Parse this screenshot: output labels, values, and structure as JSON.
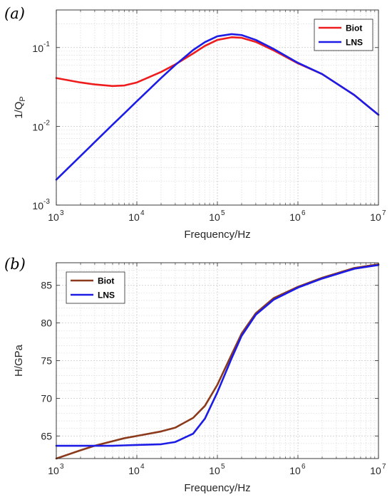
{
  "panels": [
    {
      "label": "(a)"
    },
    {
      "label": "(b)"
    }
  ],
  "chart_data": [
    {
      "type": "line",
      "panel_label": "(a)",
      "xlabel": "Frequency/Hz",
      "ylabel": "1/Q",
      "ylabel_subscript": "P",
      "xscale": "log",
      "yscale": "log",
      "xlim": [
        1000,
        10000000
      ],
      "ylim": [
        0.001,
        0.3
      ],
      "xticks": [
        {
          "base": "10",
          "exp": "3",
          "value": 1000
        },
        {
          "base": "10",
          "exp": "4",
          "value": 10000
        },
        {
          "base": "10",
          "exp": "5",
          "value": 100000
        },
        {
          "base": "10",
          "exp": "6",
          "value": 1000000
        },
        {
          "base": "10",
          "exp": "7",
          "value": 10000000
        }
      ],
      "yticks": [
        {
          "base": "10",
          "exp": "-3",
          "value": 0.001
        },
        {
          "base": "10",
          "exp": "-2",
          "value": 0.01
        },
        {
          "base": "10",
          "exp": "-1",
          "value": 0.1
        }
      ],
      "grid": true,
      "legend_position": "top-right",
      "series": [
        {
          "name": "Biot",
          "color": "#ee1c1c",
          "x": [
            1000,
            2000,
            3000,
            5000,
            7000,
            10000,
            20000,
            30000,
            50000,
            70000,
            100000,
            150000,
            200000,
            300000,
            500000,
            1000000,
            2000000,
            5000000,
            10000000
          ],
          "y": [
            0.041,
            0.036,
            0.034,
            0.0325,
            0.033,
            0.036,
            0.049,
            0.061,
            0.084,
            0.105,
            0.125,
            0.135,
            0.133,
            0.118,
            0.092,
            0.063,
            0.046,
            0.025,
            0.014
          ]
        },
        {
          "name": "LNS",
          "color": "#1c1ce6",
          "x": [
            1000,
            2000,
            3000,
            5000,
            7000,
            10000,
            20000,
            30000,
            50000,
            70000,
            100000,
            150000,
            200000,
            300000,
            500000,
            1000000,
            2000000,
            5000000,
            10000000
          ],
          "y": [
            0.0021,
            0.0042,
            0.0063,
            0.0105,
            0.0146,
            0.0208,
            0.041,
            0.06,
            0.093,
            0.117,
            0.139,
            0.148,
            0.144,
            0.125,
            0.096,
            0.064,
            0.046,
            0.025,
            0.014
          ]
        }
      ]
    },
    {
      "type": "line",
      "panel_label": "(b)",
      "xlabel": "Frequency/Hz",
      "ylabel": "H/GPa",
      "xscale": "log",
      "yscale": "linear",
      "xlim": [
        1000,
        10000000
      ],
      "ylim": [
        62,
        88
      ],
      "xticks": [
        {
          "base": "10",
          "exp": "3",
          "value": 1000
        },
        {
          "base": "10",
          "exp": "4",
          "value": 10000
        },
        {
          "base": "10",
          "exp": "5",
          "value": 100000
        },
        {
          "base": "10",
          "exp": "6",
          "value": 1000000
        },
        {
          "base": "10",
          "exp": "7",
          "value": 10000000
        }
      ],
      "yticks": [
        {
          "label": "65",
          "value": 65
        },
        {
          "label": "70",
          "value": 70
        },
        {
          "label": "75",
          "value": 75
        },
        {
          "label": "80",
          "value": 80
        },
        {
          "label": "85",
          "value": 85
        }
      ],
      "grid": true,
      "legend_position": "top-left",
      "series": [
        {
          "name": "Biot",
          "color": "#8b3a1c",
          "x": [
            1000,
            2000,
            3000,
            5000,
            7000,
            10000,
            20000,
            30000,
            50000,
            70000,
            100000,
            150000,
            200000,
            300000,
            500000,
            1000000,
            2000000,
            5000000,
            10000000
          ],
          "y": [
            62.0,
            63.1,
            63.7,
            64.3,
            64.7,
            65.0,
            65.6,
            66.1,
            67.4,
            69.0,
            71.8,
            75.8,
            78.6,
            81.3,
            83.3,
            84.8,
            86.0,
            87.3,
            87.8
          ]
        },
        {
          "name": "LNS",
          "color": "#1c1ce6",
          "x": [
            1000,
            2000,
            3000,
            5000,
            7000,
            10000,
            20000,
            30000,
            50000,
            70000,
            100000,
            150000,
            200000,
            300000,
            500000,
            1000000,
            2000000,
            5000000,
            10000000
          ],
          "y": [
            63.7,
            63.7,
            63.7,
            63.7,
            63.75,
            63.8,
            63.9,
            64.2,
            65.3,
            67.3,
            70.8,
            75.3,
            78.3,
            81.1,
            83.1,
            84.7,
            85.9,
            87.2,
            87.7
          ]
        }
      ]
    }
  ]
}
